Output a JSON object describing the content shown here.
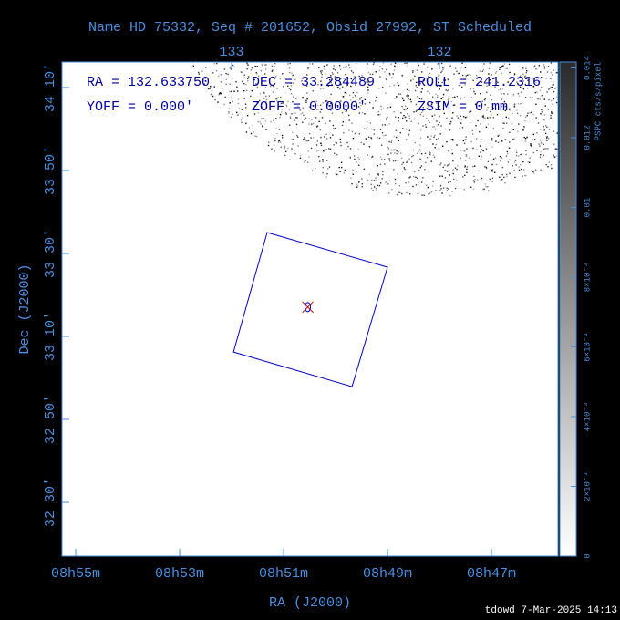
{
  "chart_data": {
    "type": "sky",
    "title": "Name HD 75332, Seq # 201652, Obsid 27992, ST Scheduled",
    "x_label": "RA (J2000)",
    "y_label": "Dec (J2000)",
    "xlim": [
      133.816,
      131.43
    ],
    "ylim": [
      32.284,
      34.269
    ],
    "xticks": [
      {
        "value": 133.75,
        "label": "08h55m"
      },
      {
        "value": 133.25,
        "label": "08h53m"
      },
      {
        "value": 132.75,
        "label": "08h51m"
      },
      {
        "value": 132.25,
        "label": "08h49m"
      },
      {
        "value": 131.75,
        "label": "08h47m"
      }
    ],
    "x2ticks": [
      133,
      132
    ],
    "yticks": [
      {
        "value": 34.1667,
        "label": "34 10'"
      },
      {
        "value": 33.8333,
        "label": "33 50'"
      },
      {
        "value": 33.5,
        "label": "33 30'"
      },
      {
        "value": 33.1667,
        "label": "33 10'"
      },
      {
        "value": 32.8333,
        "label": "32 50'"
      },
      {
        "value": 32.5,
        "label": "32 30'"
      }
    ],
    "info": [
      "RA = 132.633750",
      "DEC = 33.284489",
      "ROLL = 241.2316",
      "YOFF =    0.000'",
      "ZOFF =  0.0000'",
      "ZSIM = 0 mm"
    ],
    "target": {
      "ra": 132.63375,
      "dec": 33.284489
    },
    "footprint": {
      "ra": [
        132.829,
        132.25,
        132.421,
        132.991
      ],
      "dec": [
        33.584,
        33.445,
        32.965,
        33.104
      ],
      "color": "#0000cc"
    },
    "colorbar": {
      "title": "PSPC cts/s/pixel",
      "lim": [
        0,
        0.01417
      ],
      "ticks": [
        0,
        {
          "value": 0.002,
          "label": "2×10⁻³"
        },
        {
          "value": 0.004,
          "label": "4×10⁻³"
        },
        {
          "value": 0.006,
          "label": "6×10⁻³"
        },
        {
          "value": 0.008,
          "label": "8×10⁻³"
        },
        0.01,
        0.012,
        0.014
      ]
    },
    "footer": "tdowd  7-Mar-2025 14:13"
  }
}
